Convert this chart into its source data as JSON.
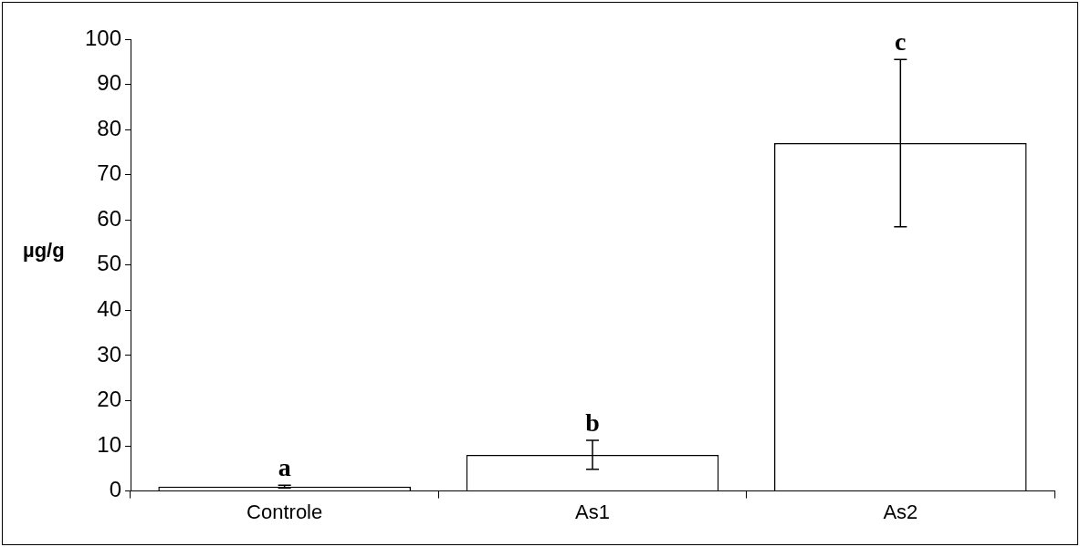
{
  "chart_data": {
    "type": "bar",
    "ylabel": "µg/g",
    "categories": [
      "Controle",
      "As1",
      "As2"
    ],
    "values": [
      1,
      8,
      77
    ],
    "errors": [
      0.3,
      3.2,
      18.5
    ],
    "color": "#ffffff",
    "ylim": [
      0,
      100
    ],
    "yticks": [
      0,
      10,
      20,
      30,
      40,
      50,
      60,
      70,
      80,
      90,
      100
    ],
    "grid": false,
    "legend": false,
    "annotations": [
      "a",
      "b",
      "c"
    ]
  }
}
